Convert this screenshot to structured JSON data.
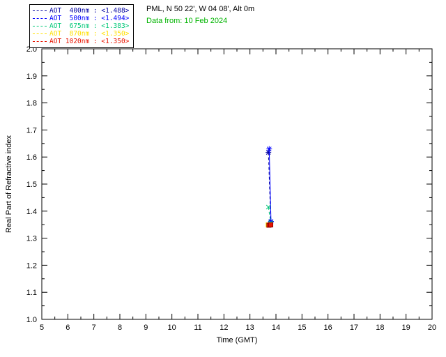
{
  "header": {
    "location": "PML, N 50 22', W 04 08', Alt 0m",
    "date_line": "Data from: 10 Feb 2024",
    "date_color": "#00B400"
  },
  "legend": {
    "items": [
      {
        "label": "AOT  400nm",
        "value": "<1.488>",
        "color": "#0000A0"
      },
      {
        "label": "AOT  500nm",
        "value": "<1.494>",
        "color": "#0000FF"
      },
      {
        "label": "AOT  675nm",
        "value": "<1.383>",
        "color": "#00C878"
      },
      {
        "label": "AOT  870nm",
        "value": "<1.350>",
        "color": "#FFE000"
      },
      {
        "label": "AOT 1020nm",
        "value": "<1.350>",
        "color": "#E81400"
      }
    ]
  },
  "chart_data": {
    "type": "line",
    "title": "",
    "xlabel": "Time (GMT)",
    "ylabel": "Real Part of Refractive index",
    "xlim": [
      5,
      20
    ],
    "ylim": [
      1.0,
      2.0
    ],
    "grid": false,
    "legend_position": "top-left",
    "xticks": [
      "5",
      "6",
      "7",
      "8",
      "9",
      "10",
      "11",
      "12",
      "13",
      "14",
      "15",
      "16",
      "17",
      "18",
      "19",
      "20"
    ],
    "yticks": [
      "1.0",
      "1.1",
      "1.2",
      "1.3",
      "1.4",
      "1.5",
      "1.6",
      "1.7",
      "1.8",
      "1.9",
      "2.0"
    ],
    "series": [
      {
        "name": "AOT 400nm",
        "mean": 1.488,
        "color": "#0000A0",
        "marker": "asterisk",
        "dash": [
          4,
          3
        ],
        "x": [
          13.71,
          13.8
        ],
        "y": [
          1.617,
          1.36
        ]
      },
      {
        "name": "AOT 500nm",
        "mean": 1.494,
        "color": "#0000FF",
        "marker": "asterisk",
        "dash": null,
        "x": [
          13.74,
          13.81
        ],
        "y": [
          1.63,
          1.362
        ]
      },
      {
        "name": "AOT 675nm",
        "mean": 1.383,
        "color": "#00C878",
        "marker": "x",
        "dash": [
          4,
          3
        ],
        "x": [
          13.71,
          13.8
        ],
        "y": [
          1.415,
          1.357
        ]
      },
      {
        "name": "AOT 870nm",
        "mean": 1.35,
        "color": "#FFE000",
        "marker": "square",
        "dash": [
          4,
          3
        ],
        "x": [
          13.7,
          13.79
        ],
        "y": [
          1.349,
          1.35
        ]
      },
      {
        "name": "AOT 1020nm",
        "mean": 1.35,
        "color": "#E81400",
        "edge": "#900000",
        "marker": "square",
        "dash": [
          4,
          3
        ],
        "x": [
          13.73,
          13.8
        ],
        "y": [
          1.348,
          1.349
        ]
      }
    ]
  }
}
